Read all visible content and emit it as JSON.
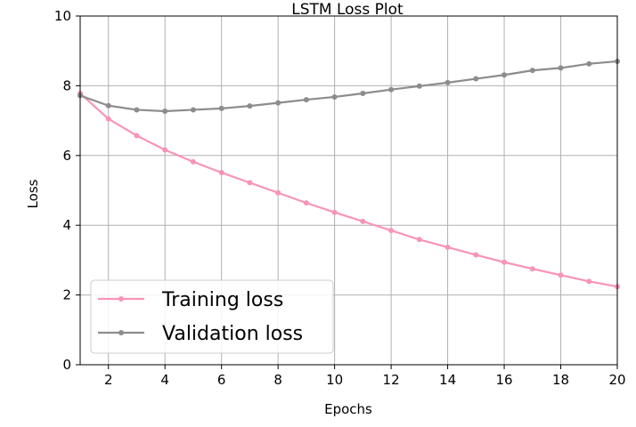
{
  "chart_data": {
    "type": "line",
    "title": "LSTM Loss Plot",
    "xlabel": "Epochs",
    "ylabel": "Loss",
    "xlim": [
      1,
      20
    ],
    "ylim": [
      0,
      10
    ],
    "xticks": [
      "2",
      "4",
      "6",
      "8",
      "10",
      "12",
      "14",
      "16",
      "18",
      "20"
    ],
    "yticks": [
      "0",
      "2",
      "4",
      "6",
      "8",
      "10"
    ],
    "grid": true,
    "legend_position": "bottom-left",
    "x": [
      1,
      2,
      3,
      4,
      5,
      6,
      7,
      8,
      9,
      10,
      11,
      12,
      13,
      14,
      15,
      16,
      17,
      18,
      19,
      20
    ],
    "series": [
      {
        "name": "Training loss",
        "color": "#f994b4",
        "values": [
          7.78,
          7.05,
          6.57,
          6.16,
          5.82,
          5.51,
          5.22,
          4.93,
          4.64,
          4.37,
          4.11,
          3.85,
          3.59,
          3.37,
          3.15,
          2.94,
          2.75,
          2.57,
          2.39,
          2.24
        ]
      },
      {
        "name": "Validation loss",
        "color": "#8c8c8c",
        "values": [
          7.72,
          7.43,
          7.31,
          7.27,
          7.31,
          7.35,
          7.42,
          7.51,
          7.6,
          7.68,
          7.78,
          7.89,
          7.99,
          8.09,
          8.2,
          8.31,
          8.44,
          8.51,
          8.63,
          8.7
        ]
      }
    ]
  }
}
